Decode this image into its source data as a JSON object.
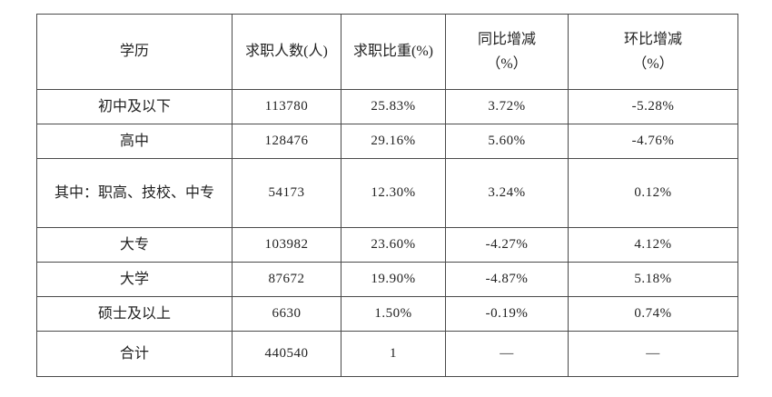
{
  "table": {
    "headers": [
      "学历",
      "求职人数(人)",
      "求职比重(%)",
      "同比增减\n（%）",
      "环比增减\n（%）"
    ],
    "rows": [
      {
        "cells": [
          "初中及以下",
          "113780",
          "25.83%",
          "3.72%",
          "-5.28%"
        ]
      },
      {
        "cells": [
          "高中",
          "128476",
          "29.16%",
          "5.60%",
          "-4.76%"
        ]
      },
      {
        "cells": [
          "其中：职高、技校、中专",
          "54173",
          "12.30%",
          "3.24%",
          "0.12%"
        ]
      },
      {
        "cells": [
          "大专",
          "103982",
          "23.60%",
          "-4.27%",
          "4.12%"
        ]
      },
      {
        "cells": [
          "大学",
          "87672",
          "19.90%",
          "-4.87%",
          "5.18%"
        ]
      },
      {
        "cells": [
          "硕士及以上",
          "6630",
          "1.50%",
          "-0.19%",
          "0.74%"
        ]
      },
      {
        "cells": [
          "合计",
          "440540",
          "1",
          "—",
          "—"
        ]
      }
    ]
  }
}
